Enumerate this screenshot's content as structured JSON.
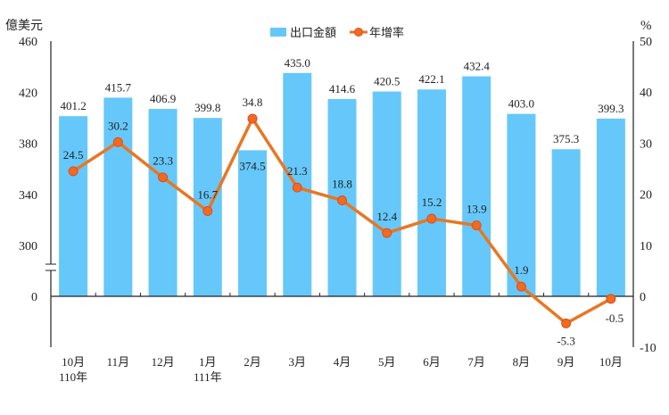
{
  "chart_data": {
    "type": "bar+line",
    "left_axis": {
      "unit_label": "億美元",
      "ticks": [
        460,
        420,
        380,
        340,
        300,
        0
      ],
      "axis_break": "between 0 and 300",
      "range": [
        300,
        460
      ]
    },
    "right_axis": {
      "unit_label": "%",
      "ticks": [
        50,
        40,
        30,
        20,
        10,
        0,
        -10
      ],
      "range": [
        -10,
        50
      ]
    },
    "categories": [
      "10月",
      "11月",
      "12月",
      "1月",
      "2月",
      "3月",
      "4月",
      "5月",
      "6月",
      "7月",
      "8月",
      "9月",
      "10月"
    ],
    "year_labels": [
      "110年",
      "",
      "",
      "111年",
      "",
      "",
      "",
      "",
      "",
      "",
      "",
      "",
      ""
    ],
    "series": [
      {
        "name": "出口金額",
        "type": "bar",
        "axis": "left",
        "color": "#66c8fa",
        "values": [
          401.2,
          415.7,
          406.9,
          399.8,
          374.5,
          435.0,
          414.6,
          420.5,
          422.1,
          432.4,
          403.0,
          375.3,
          399.3
        ],
        "labels": [
          "401.2",
          "415.7",
          "406.9",
          "399.8",
          "374.5",
          "435.0",
          "414.6",
          "420.5",
          "422.1",
          "432.4",
          "403.0",
          "375.3",
          "399.3"
        ]
      },
      {
        "name": "年增率",
        "type": "line",
        "axis": "right",
        "color": "#e87722",
        "values": [
          24.5,
          30.2,
          23.3,
          16.7,
          34.8,
          21.3,
          18.8,
          12.4,
          15.2,
          13.9,
          1.9,
          -5.3,
          -0.5
        ],
        "labels": [
          "24.5",
          "30.2",
          "23.3",
          "16.7",
          "34.8",
          "21.3",
          "18.8",
          "12.4",
          "15.2",
          "13.9",
          "1.9",
          "-5.3",
          "-0.5"
        ]
      }
    ],
    "legend_position": "top-center",
    "grid": false
  }
}
